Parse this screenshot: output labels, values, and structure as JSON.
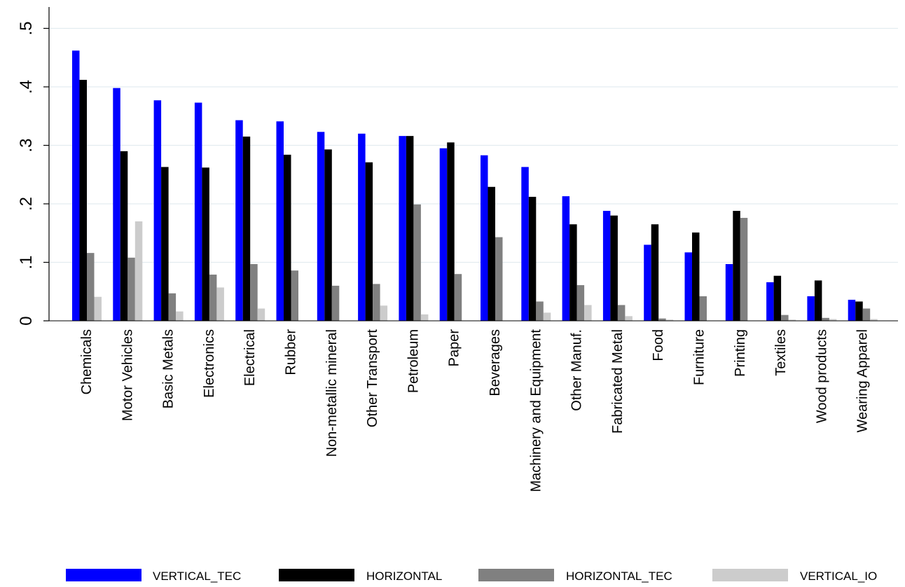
{
  "chart_data": {
    "type": "bar",
    "title": "",
    "xlabel": "",
    "ylabel": "",
    "ylim": [
      0,
      0.52
    ],
    "yticks": [
      0,
      0.1,
      0.2,
      0.3,
      0.4,
      0.5
    ],
    "ytick_labels": [
      "0",
      ".1",
      ".2",
      ".3",
      ".4",
      ".5"
    ],
    "grid": true,
    "legend_position": "bottom",
    "categories": [
      "Chemicals",
      "Motor Vehicles",
      "Basic Metals",
      "Electronics",
      "Electrical",
      "Rubber",
      "Non-metallic mineral",
      "Other Transport",
      "Petroleum",
      "Paper",
      "Beverages",
      "Machinery and Equipment",
      "Other Manuf.",
      "Fabricated Metal",
      "Food",
      "Furniture",
      "Printing",
      "Textiles",
      "Wood products",
      "Wearing Apparel"
    ],
    "series": [
      {
        "name": "VERTICAL_TEC",
        "color": "#0000ff",
        "values": [
          0.462,
          0.398,
          0.377,
          0.373,
          0.343,
          0.341,
          0.323,
          0.32,
          0.316,
          0.295,
          0.283,
          0.263,
          0.213,
          0.188,
          0.13,
          0.117,
          0.097,
          0.066,
          0.042,
          0.036
        ]
      },
      {
        "name": "HORIZONTAL",
        "color": "#000000",
        "values": [
          0.412,
          0.29,
          0.263,
          0.262,
          0.315,
          0.284,
          0.293,
          0.271,
          0.316,
          0.305,
          0.229,
          0.212,
          0.165,
          0.18,
          0.165,
          0.151,
          0.188,
          0.077,
          0.069,
          0.033
        ]
      },
      {
        "name": "HORIZONTAL_TEC",
        "color": "#808080",
        "values": [
          0.116,
          0.108,
          0.047,
          0.079,
          0.097,
          0.086,
          0.06,
          0.063,
          0.199,
          0.08,
          0.143,
          0.033,
          0.061,
          0.027,
          0.004,
          0.042,
          0.176,
          0.01,
          0.005,
          0.021
        ]
      },
      {
        "name": "VERTICAL_IO",
        "color": "#cccccc",
        "values": [
          0.041,
          0.17,
          0.016,
          0.057,
          0.021,
          0.0,
          0.0,
          0.026,
          0.011,
          0.0,
          0.0,
          0.014,
          0.027,
          0.008,
          0.002,
          0.0,
          0.0,
          0.002,
          0.003,
          0.003
        ]
      }
    ]
  }
}
